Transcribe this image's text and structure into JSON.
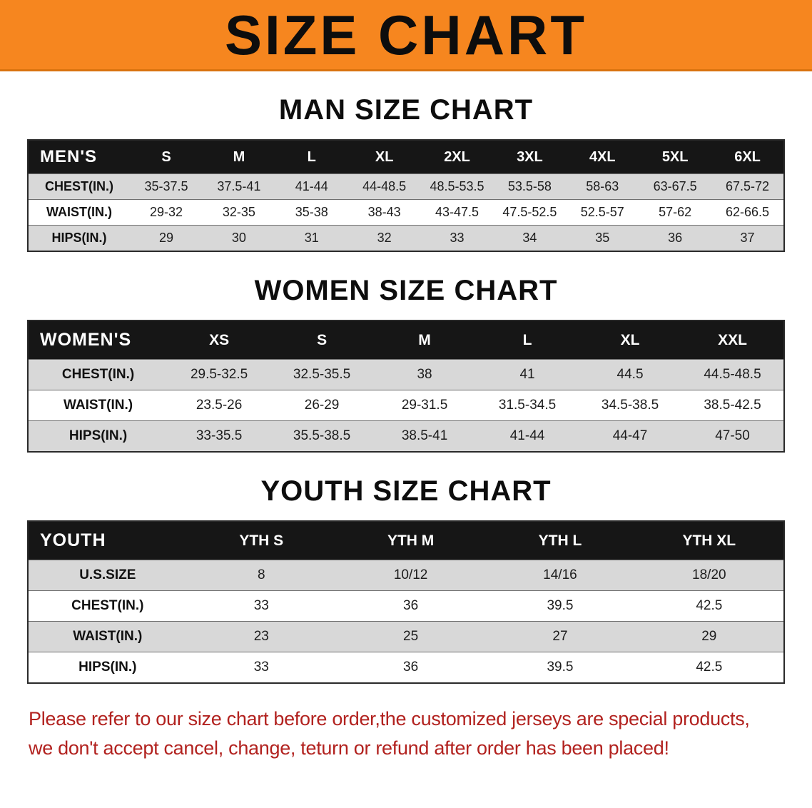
{
  "banner": {
    "title": "SIZE CHART"
  },
  "men": {
    "heading": "MAN SIZE CHART",
    "table": {
      "header": [
        "MEN'S",
        "S",
        "M",
        "L",
        "XL",
        "2XL",
        "3XL",
        "4XL",
        "5XL",
        "6XL"
      ],
      "rows": [
        [
          "CHEST(IN.)",
          "35-37.5",
          "37.5-41",
          "41-44",
          "44-48.5",
          "48.5-53.5",
          "53.5-58",
          "58-63",
          "63-67.5",
          "67.5-72"
        ],
        [
          "WAIST(IN.)",
          "29-32",
          "32-35",
          "35-38",
          "38-43",
          "43-47.5",
          "47.5-52.5",
          "52.5-57",
          "57-62",
          "62-66.5"
        ],
        [
          "HIPS(IN.)",
          "29",
          "30",
          "31",
          "32",
          "33",
          "34",
          "35",
          "36",
          "37"
        ]
      ]
    }
  },
  "women": {
    "heading": "WOMEN SIZE CHART",
    "table": {
      "header": [
        "WOMEN'S",
        "XS",
        "S",
        "M",
        "L",
        "XL",
        "XXL"
      ],
      "rows": [
        [
          "CHEST(IN.)",
          "29.5-32.5",
          "32.5-35.5",
          "38",
          "41",
          "44.5",
          "44.5-48.5"
        ],
        [
          "WAIST(IN.)",
          "23.5-26",
          "26-29",
          "29-31.5",
          "31.5-34.5",
          "34.5-38.5",
          "38.5-42.5"
        ],
        [
          "HIPS(IN.)",
          "33-35.5",
          "35.5-38.5",
          "38.5-41",
          "41-44",
          "44-47",
          "47-50"
        ]
      ]
    }
  },
  "youth": {
    "heading": "YOUTH SIZE CHART",
    "table": {
      "header": [
        "YOUTH",
        "YTH S",
        "YTH M",
        "YTH L",
        "YTH XL"
      ],
      "rows": [
        [
          "U.S.SIZE",
          "8",
          "10/12",
          "14/16",
          "18/20"
        ],
        [
          "CHEST(IN.)",
          "33",
          "36",
          "39.5",
          "42.5"
        ],
        [
          "WAIST(IN.)",
          "23",
          "25",
          "27",
          "29"
        ],
        [
          "HIPS(IN.)",
          "33",
          "36",
          "39.5",
          "42.5"
        ]
      ]
    }
  },
  "disclaimer": {
    "line1": "Please refer to our size chart before order,the customized jerseys are special products,",
    "line2": "we don't accept cancel, change, teturn or refund after order has been placed!"
  },
  "colors": {
    "banner-bg": "#f6861f",
    "table-header-bg": "#161616",
    "stripe": "#d8d8d8",
    "disclaimer-red": "#b2221f"
  }
}
